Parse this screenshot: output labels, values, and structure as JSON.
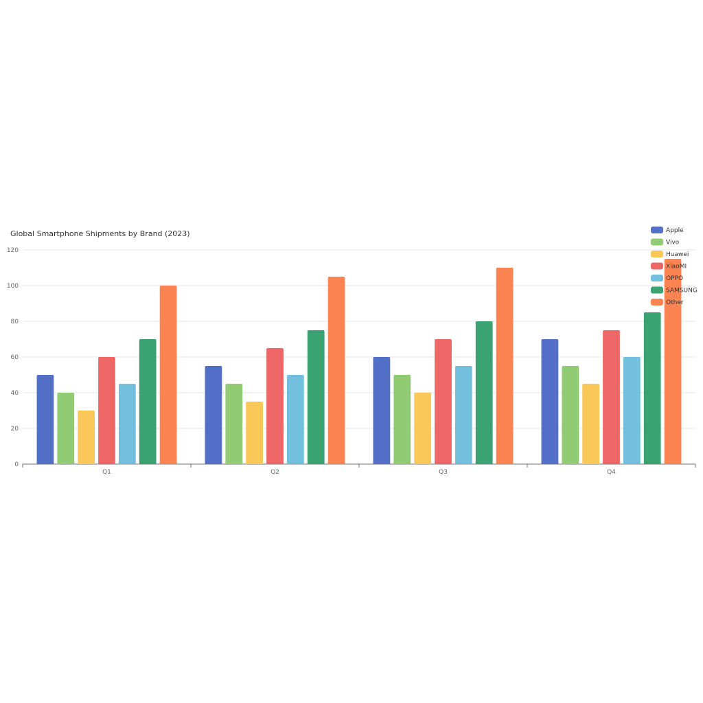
{
  "chart_data": {
    "type": "bar",
    "title": "Global Smartphone Shipments by Brand (2023)",
    "categories": [
      "Q1",
      "Q2",
      "Q3",
      "Q4"
    ],
    "ylim": [
      0,
      120
    ],
    "yticks": [
      0,
      20,
      40,
      60,
      80,
      100,
      120
    ],
    "grid": true,
    "legend_position": "top-right",
    "series": [
      {
        "name": "Apple",
        "color": "#5470c6",
        "values": [
          50,
          55,
          60,
          70
        ]
      },
      {
        "name": "Vivo",
        "color": "#91cc75",
        "values": [
          40,
          45,
          50,
          55
        ]
      },
      {
        "name": "Huawei",
        "color": "#fac858",
        "values": [
          30,
          35,
          40,
          45
        ]
      },
      {
        "name": "XiaoMI",
        "color": "#ee6666",
        "values": [
          60,
          65,
          70,
          75
        ]
      },
      {
        "name": "OPPO",
        "color": "#73c0de",
        "values": [
          45,
          50,
          55,
          60
        ]
      },
      {
        "name": "SAMSUNG",
        "color": "#3ba272",
        "values": [
          70,
          75,
          80,
          85
        ]
      },
      {
        "name": "Other",
        "color": "#fc8452",
        "values": [
          100,
          105,
          110,
          115
        ]
      }
    ]
  }
}
